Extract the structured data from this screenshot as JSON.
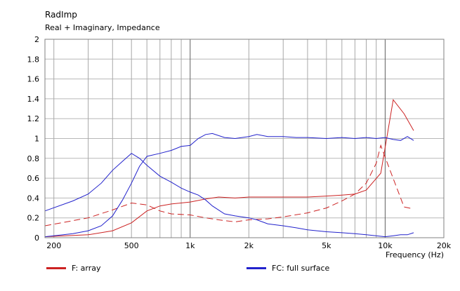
{
  "chart_data": {
    "type": "line",
    "title": "RadImp",
    "subtitle": "Real + Imaginary, Impedance",
    "xlabel": "Frequency  (Hz)",
    "ylabel": "",
    "x_scale": "log",
    "xlim": [
      180,
      20000
    ],
    "ylim": [
      0,
      2
    ],
    "grid": true,
    "legend_position": "bottom",
    "x_tick_values": [
      200,
      500,
      1000,
      2000,
      5000,
      10000,
      20000
    ],
    "x_tick_labels": [
      "200",
      "500",
      "1k",
      "2k",
      "5k",
      "10k",
      "20k"
    ],
    "y_tick_values": [
      0,
      0.2,
      0.4,
      0.6,
      0.8,
      1,
      1.2,
      1.4,
      1.6,
      1.8,
      2
    ],
    "y_tick_labels": [
      "0",
      "0.2",
      "0.4",
      "0.6",
      "0.8",
      "1",
      "1.2",
      "1.4",
      "1.6",
      "1.8",
      "2"
    ],
    "legend": [
      {
        "label": "F: array",
        "color": "#cc2222"
      },
      {
        "label": "FC: full surface",
        "color": "#2222cc"
      }
    ],
    "series": [
      {
        "legend": "F: array",
        "part": "real",
        "color": "#cc2222",
        "dash": false,
        "x": [
          180,
          300,
          400,
          500,
          600,
          700,
          800,
          1000,
          1200,
          1400,
          1700,
          2000,
          2500,
          3000,
          4000,
          5000,
          6000,
          7000,
          8000,
          9500,
          11000,
          12500,
          14000
        ],
        "y": [
          0.01,
          0.03,
          0.07,
          0.15,
          0.27,
          0.32,
          0.34,
          0.36,
          0.39,
          0.41,
          0.4,
          0.41,
          0.41,
          0.41,
          0.41,
          0.42,
          0.43,
          0.44,
          0.48,
          0.65,
          1.39,
          1.25,
          1.08
        ]
      },
      {
        "legend": "F: array",
        "part": "imaginary",
        "color": "#cc2222",
        "dash": true,
        "x": [
          180,
          300,
          400,
          500,
          600,
          700,
          800,
          1000,
          1200,
          1400,
          1700,
          2000,
          2500,
          3000,
          4000,
          5000,
          6000,
          7000,
          8000,
          9000,
          9500,
          10500,
          12500,
          14000
        ],
        "y": [
          0.12,
          0.2,
          0.28,
          0.35,
          0.33,
          0.27,
          0.24,
          0.23,
          0.2,
          0.18,
          0.16,
          0.18,
          0.19,
          0.21,
          0.25,
          0.3,
          0.37,
          0.44,
          0.55,
          0.75,
          0.93,
          0.7,
          0.31,
          0.29
        ]
      },
      {
        "legend": "FC: full surface",
        "part": "real",
        "color": "#2222cc",
        "dash": false,
        "x": [
          180,
          250,
          300,
          350,
          400,
          450,
          500,
          550,
          600,
          700,
          800,
          900,
          1000,
          1100,
          1200,
          1300,
          1500,
          1700,
          2000,
          2200,
          2500,
          3000,
          3500,
          4000,
          5000,
          6000,
          7000,
          8000,
          9000,
          10000,
          11000,
          12000,
          13000,
          14000
        ],
        "y": [
          0.01,
          0.04,
          0.07,
          0.12,
          0.22,
          0.38,
          0.55,
          0.72,
          0.82,
          0.85,
          0.88,
          0.92,
          0.93,
          1.0,
          1.04,
          1.05,
          1.01,
          1.0,
          1.02,
          1.04,
          1.02,
          1.02,
          1.01,
          1.01,
          1.0,
          1.01,
          1.0,
          1.01,
          1.0,
          1.01,
          0.99,
          0.98,
          1.02,
          0.98
        ]
      },
      {
        "legend": "FC: full surface",
        "part": "imaginary",
        "color": "#2222cc",
        "dash": false,
        "x": [
          180,
          250,
          300,
          350,
          400,
          450,
          500,
          550,
          600,
          700,
          800,
          900,
          1000,
          1100,
          1200,
          1300,
          1500,
          1700,
          2000,
          2200,
          2500,
          3000,
          3500,
          4000,
          5000,
          6000,
          7000,
          8000,
          9000,
          10000,
          11000,
          12000,
          13000,
          14000
        ],
        "y": [
          0.27,
          0.37,
          0.44,
          0.55,
          0.68,
          0.77,
          0.85,
          0.8,
          0.73,
          0.62,
          0.56,
          0.5,
          0.46,
          0.43,
          0.38,
          0.32,
          0.24,
          0.22,
          0.2,
          0.18,
          0.14,
          0.12,
          0.1,
          0.08,
          0.06,
          0.05,
          0.04,
          0.03,
          0.02,
          0.01,
          0.02,
          0.03,
          0.03,
          0.05
        ]
      }
    ]
  }
}
